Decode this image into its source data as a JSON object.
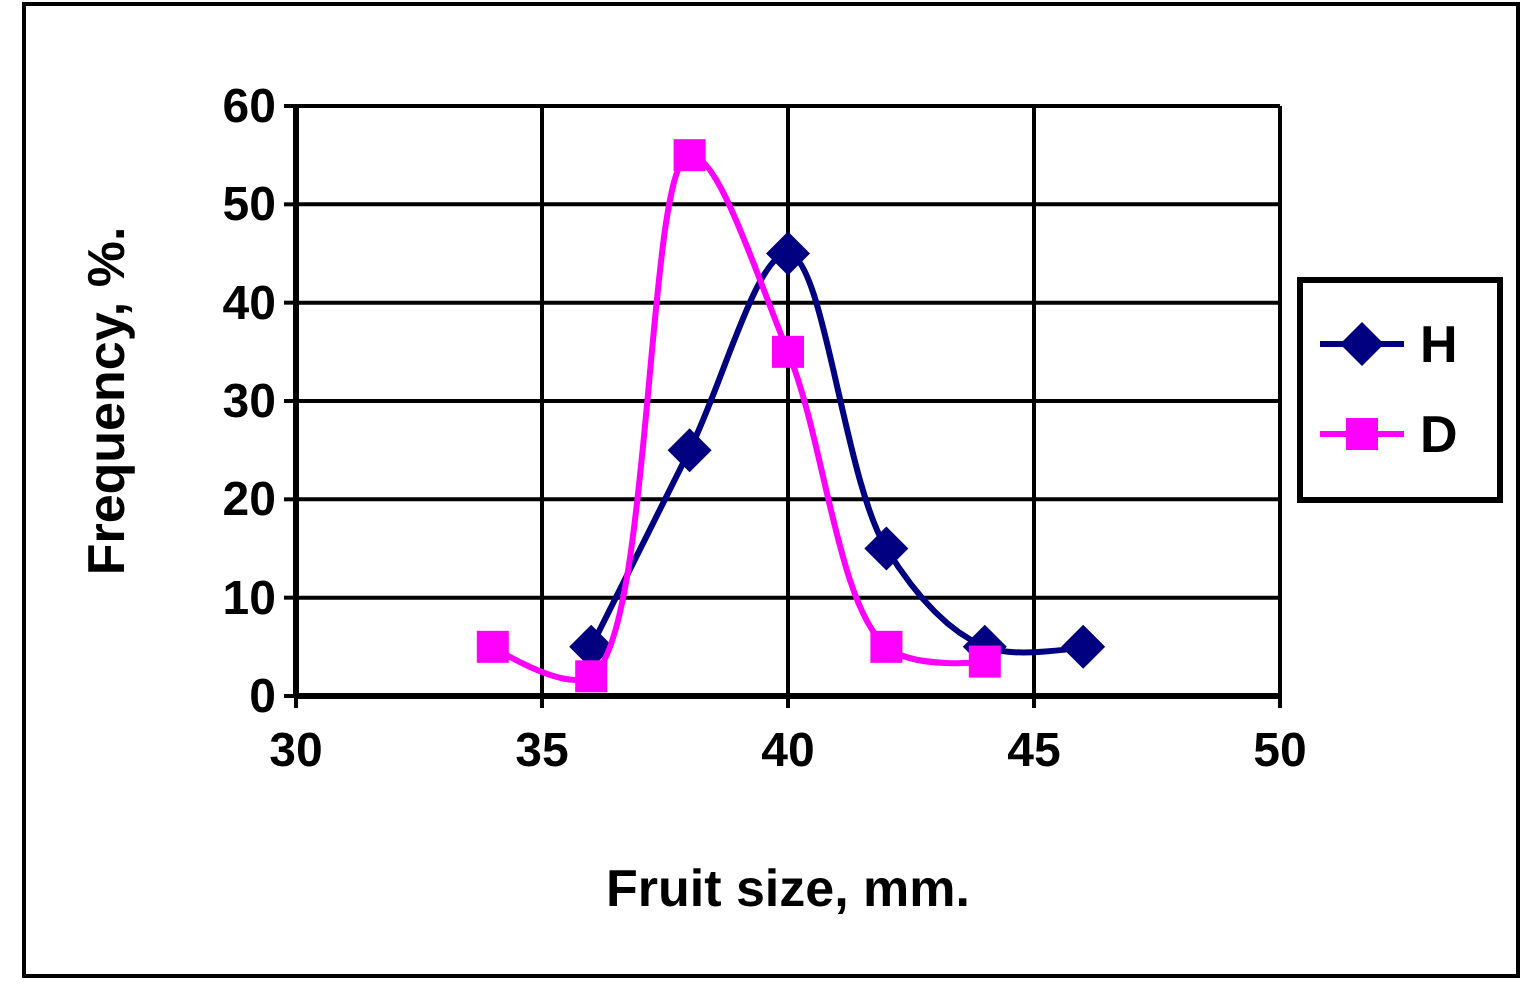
{
  "chart_data": {
    "type": "line",
    "xlabel": "Fruit size, mm.",
    "ylabel": "Frequency, %.",
    "xlim": [
      30,
      50
    ],
    "xticks": [
      30,
      35,
      40,
      45,
      50
    ],
    "ylim": [
      0,
      60
    ],
    "yticks": [
      0,
      10,
      20,
      30,
      40,
      50,
      60
    ],
    "grid": true,
    "legend": "right",
    "series": [
      {
        "name": "H",
        "color": "#000080",
        "marker": "diamond",
        "x": [
          36,
          38,
          40,
          42,
          44,
          46
        ],
        "values": [
          5,
          25,
          45,
          15,
          5,
          5
        ]
      },
      {
        "name": "D",
        "color": "#ff00ff",
        "marker": "square",
        "x": [
          34,
          36,
          38,
          40,
          42,
          44
        ],
        "values": [
          5,
          2,
          55,
          35,
          5,
          3.5
        ]
      }
    ]
  }
}
